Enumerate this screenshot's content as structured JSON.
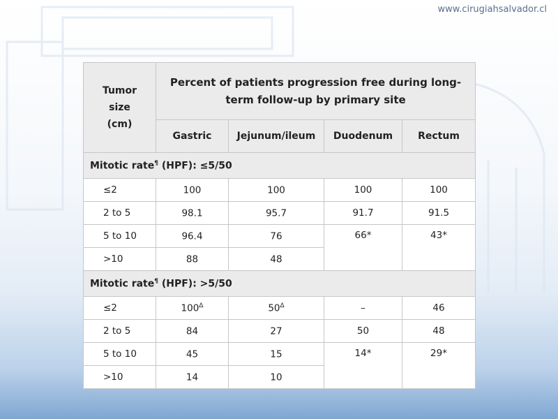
{
  "site": "www.cirugiahsalvador.cl",
  "table": {
    "header": {
      "size_label_lines": [
        "Tumor",
        "size",
        "(cm)"
      ],
      "title": "Percent of patients progression free during long-term follow-up by primary site",
      "sites": [
        "Gastric",
        "Jejunum/ileum",
        "Duodenum",
        "Rectum"
      ]
    },
    "sections": [
      {
        "label_prefix": "Mitotic rate",
        "label_mark": "¶",
        "label_suffix": " (HPF): ≤5/50",
        "rows": [
          {
            "size": "≤2",
            "gastric": "100",
            "gastric_mark": "",
            "jejunum": "100",
            "jejunum_mark": "",
            "duodenum": "100",
            "rectum": "100"
          },
          {
            "size": "2 to 5",
            "gastric": "98.1",
            "gastric_mark": "",
            "jejunum": "95.7",
            "jejunum_mark": "",
            "duodenum": "91.7",
            "rectum": "91.5"
          },
          {
            "size": "5 to 10",
            "gastric": "96.4",
            "gastric_mark": "",
            "jejunum": "76",
            "jejunum_mark": "",
            "duodenum": "66*",
            "rectum": "43*"
          },
          {
            "size": ">10",
            "gastric": "88",
            "gastric_mark": "",
            "jejunum": "48",
            "jejunum_mark": ""
          }
        ]
      },
      {
        "label_prefix": "Mitotic rate",
        "label_mark": "¶",
        "label_suffix": " (HPF): >5/50",
        "rows": [
          {
            "size": "≤2",
            "gastric": "100",
            "gastric_mark": "Δ",
            "jejunum": "50",
            "jejunum_mark": "Δ",
            "duodenum": "–",
            "rectum": "46"
          },
          {
            "size": "2 to 5",
            "gastric": "84",
            "gastric_mark": "",
            "jejunum": "27",
            "jejunum_mark": "",
            "duodenum": "50",
            "rectum": "48"
          },
          {
            "size": "5 to 10",
            "gastric": "45",
            "gastric_mark": "",
            "jejunum": "15",
            "jejunum_mark": "",
            "duodenum": "14*",
            "rectum": "29*"
          },
          {
            "size": ">10",
            "gastric": "14",
            "gastric_mark": "",
            "jejunum": "10",
            "jejunum_mark": ""
          }
        ]
      }
    ]
  }
}
